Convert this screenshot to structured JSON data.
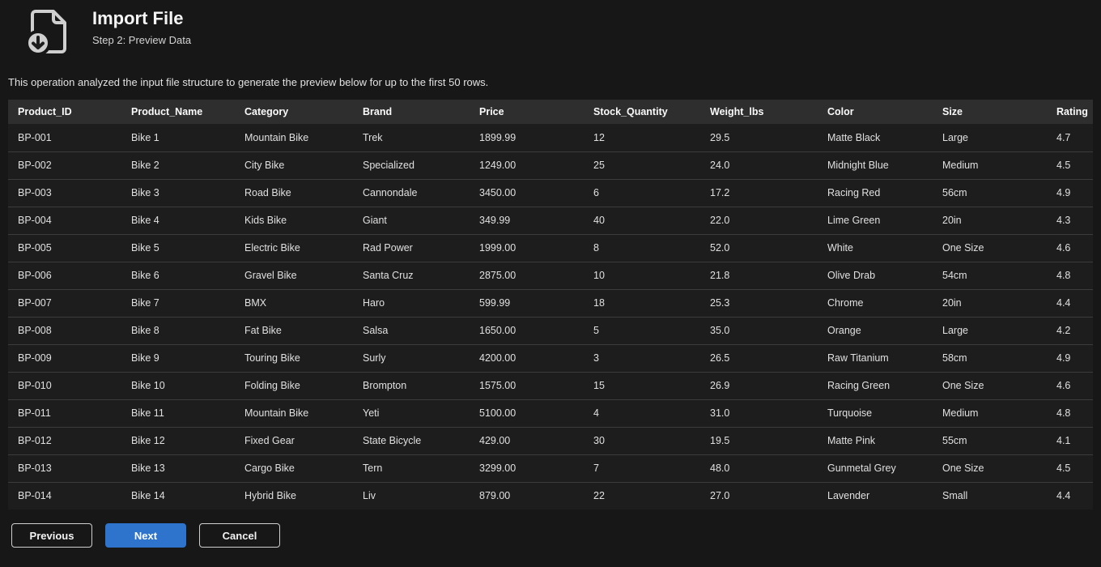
{
  "header": {
    "title": "Import File",
    "subtitle": "Step 2: Preview Data",
    "icon": "file-download-icon"
  },
  "description": "This operation analyzed the input file structure to generate the preview below for up to the first 50 rows.",
  "table": {
    "columns": [
      "Product_ID",
      "Product_Name",
      "Category",
      "Brand",
      "Price",
      "Stock_Quantity",
      "Weight_lbs",
      "Color",
      "Size",
      "Rating"
    ],
    "rows": [
      [
        "BP-001",
        "Bike 1",
        "Mountain Bike",
        "Trek",
        "1899.99",
        "12",
        "29.5",
        "Matte Black",
        "Large",
        "4.7"
      ],
      [
        "BP-002",
        "Bike 2",
        "City Bike",
        "Specialized",
        "1249.00",
        "25",
        "24.0",
        "Midnight Blue",
        "Medium",
        "4.5"
      ],
      [
        "BP-003",
        "Bike 3",
        "Road Bike",
        "Cannondale",
        "3450.00",
        "6",
        "17.2",
        "Racing Red",
        "56cm",
        "4.9"
      ],
      [
        "BP-004",
        "Bike 4",
        "Kids Bike",
        "Giant",
        "349.99",
        "40",
        "22.0",
        "Lime Green",
        "20in",
        "4.3"
      ],
      [
        "BP-005",
        "Bike 5",
        "Electric Bike",
        "Rad Power",
        "1999.00",
        "8",
        "52.0",
        "White",
        "One Size",
        "4.6"
      ],
      [
        "BP-006",
        "Bike 6",
        "Gravel Bike",
        "Santa Cruz",
        "2875.00",
        "10",
        "21.8",
        "Olive Drab",
        "54cm",
        "4.8"
      ],
      [
        "BP-007",
        "Bike 7",
        "BMX",
        "Haro",
        "599.99",
        "18",
        "25.3",
        "Chrome",
        "20in",
        "4.4"
      ],
      [
        "BP-008",
        "Bike 8",
        "Fat Bike",
        "Salsa",
        "1650.00",
        "5",
        "35.0",
        "Orange",
        "Large",
        "4.2"
      ],
      [
        "BP-009",
        "Bike 9",
        "Touring Bike",
        "Surly",
        "4200.00",
        "3",
        "26.5",
        "Raw Titanium",
        "58cm",
        "4.9"
      ],
      [
        "BP-010",
        "Bike 10",
        "Folding Bike",
        "Brompton",
        "1575.00",
        "15",
        "26.9",
        "Racing Green",
        "One Size",
        "4.6"
      ],
      [
        "BP-011",
        "Bike 11",
        "Mountain Bike",
        "Yeti",
        "5100.00",
        "4",
        "31.0",
        "Turquoise",
        "Medium",
        "4.8"
      ],
      [
        "BP-012",
        "Bike 12",
        "Fixed Gear",
        "State Bicycle",
        "429.00",
        "30",
        "19.5",
        "Matte Pink",
        "55cm",
        "4.1"
      ],
      [
        "BP-013",
        "Bike 13",
        "Cargo Bike",
        "Tern",
        "3299.00",
        "7",
        "48.0",
        "Gunmetal Grey",
        "One Size",
        "4.5"
      ],
      [
        "BP-014",
        "Bike 14",
        "Hybrid Bike",
        "Liv",
        "879.00",
        "22",
        "27.0",
        "Lavender",
        "Small",
        "4.4"
      ]
    ]
  },
  "footer": {
    "previous_label": "Previous",
    "next_label": "Next",
    "cancel_label": "Cancel"
  },
  "colors": {
    "accent_blue": "#2e74cc",
    "page_bg": "#171717",
    "table_header_bg": "#2e2e2e",
    "row_bg": "#1d1d1d",
    "divider": "#3c3c3c",
    "icon_grey": "#cfcfcf"
  }
}
